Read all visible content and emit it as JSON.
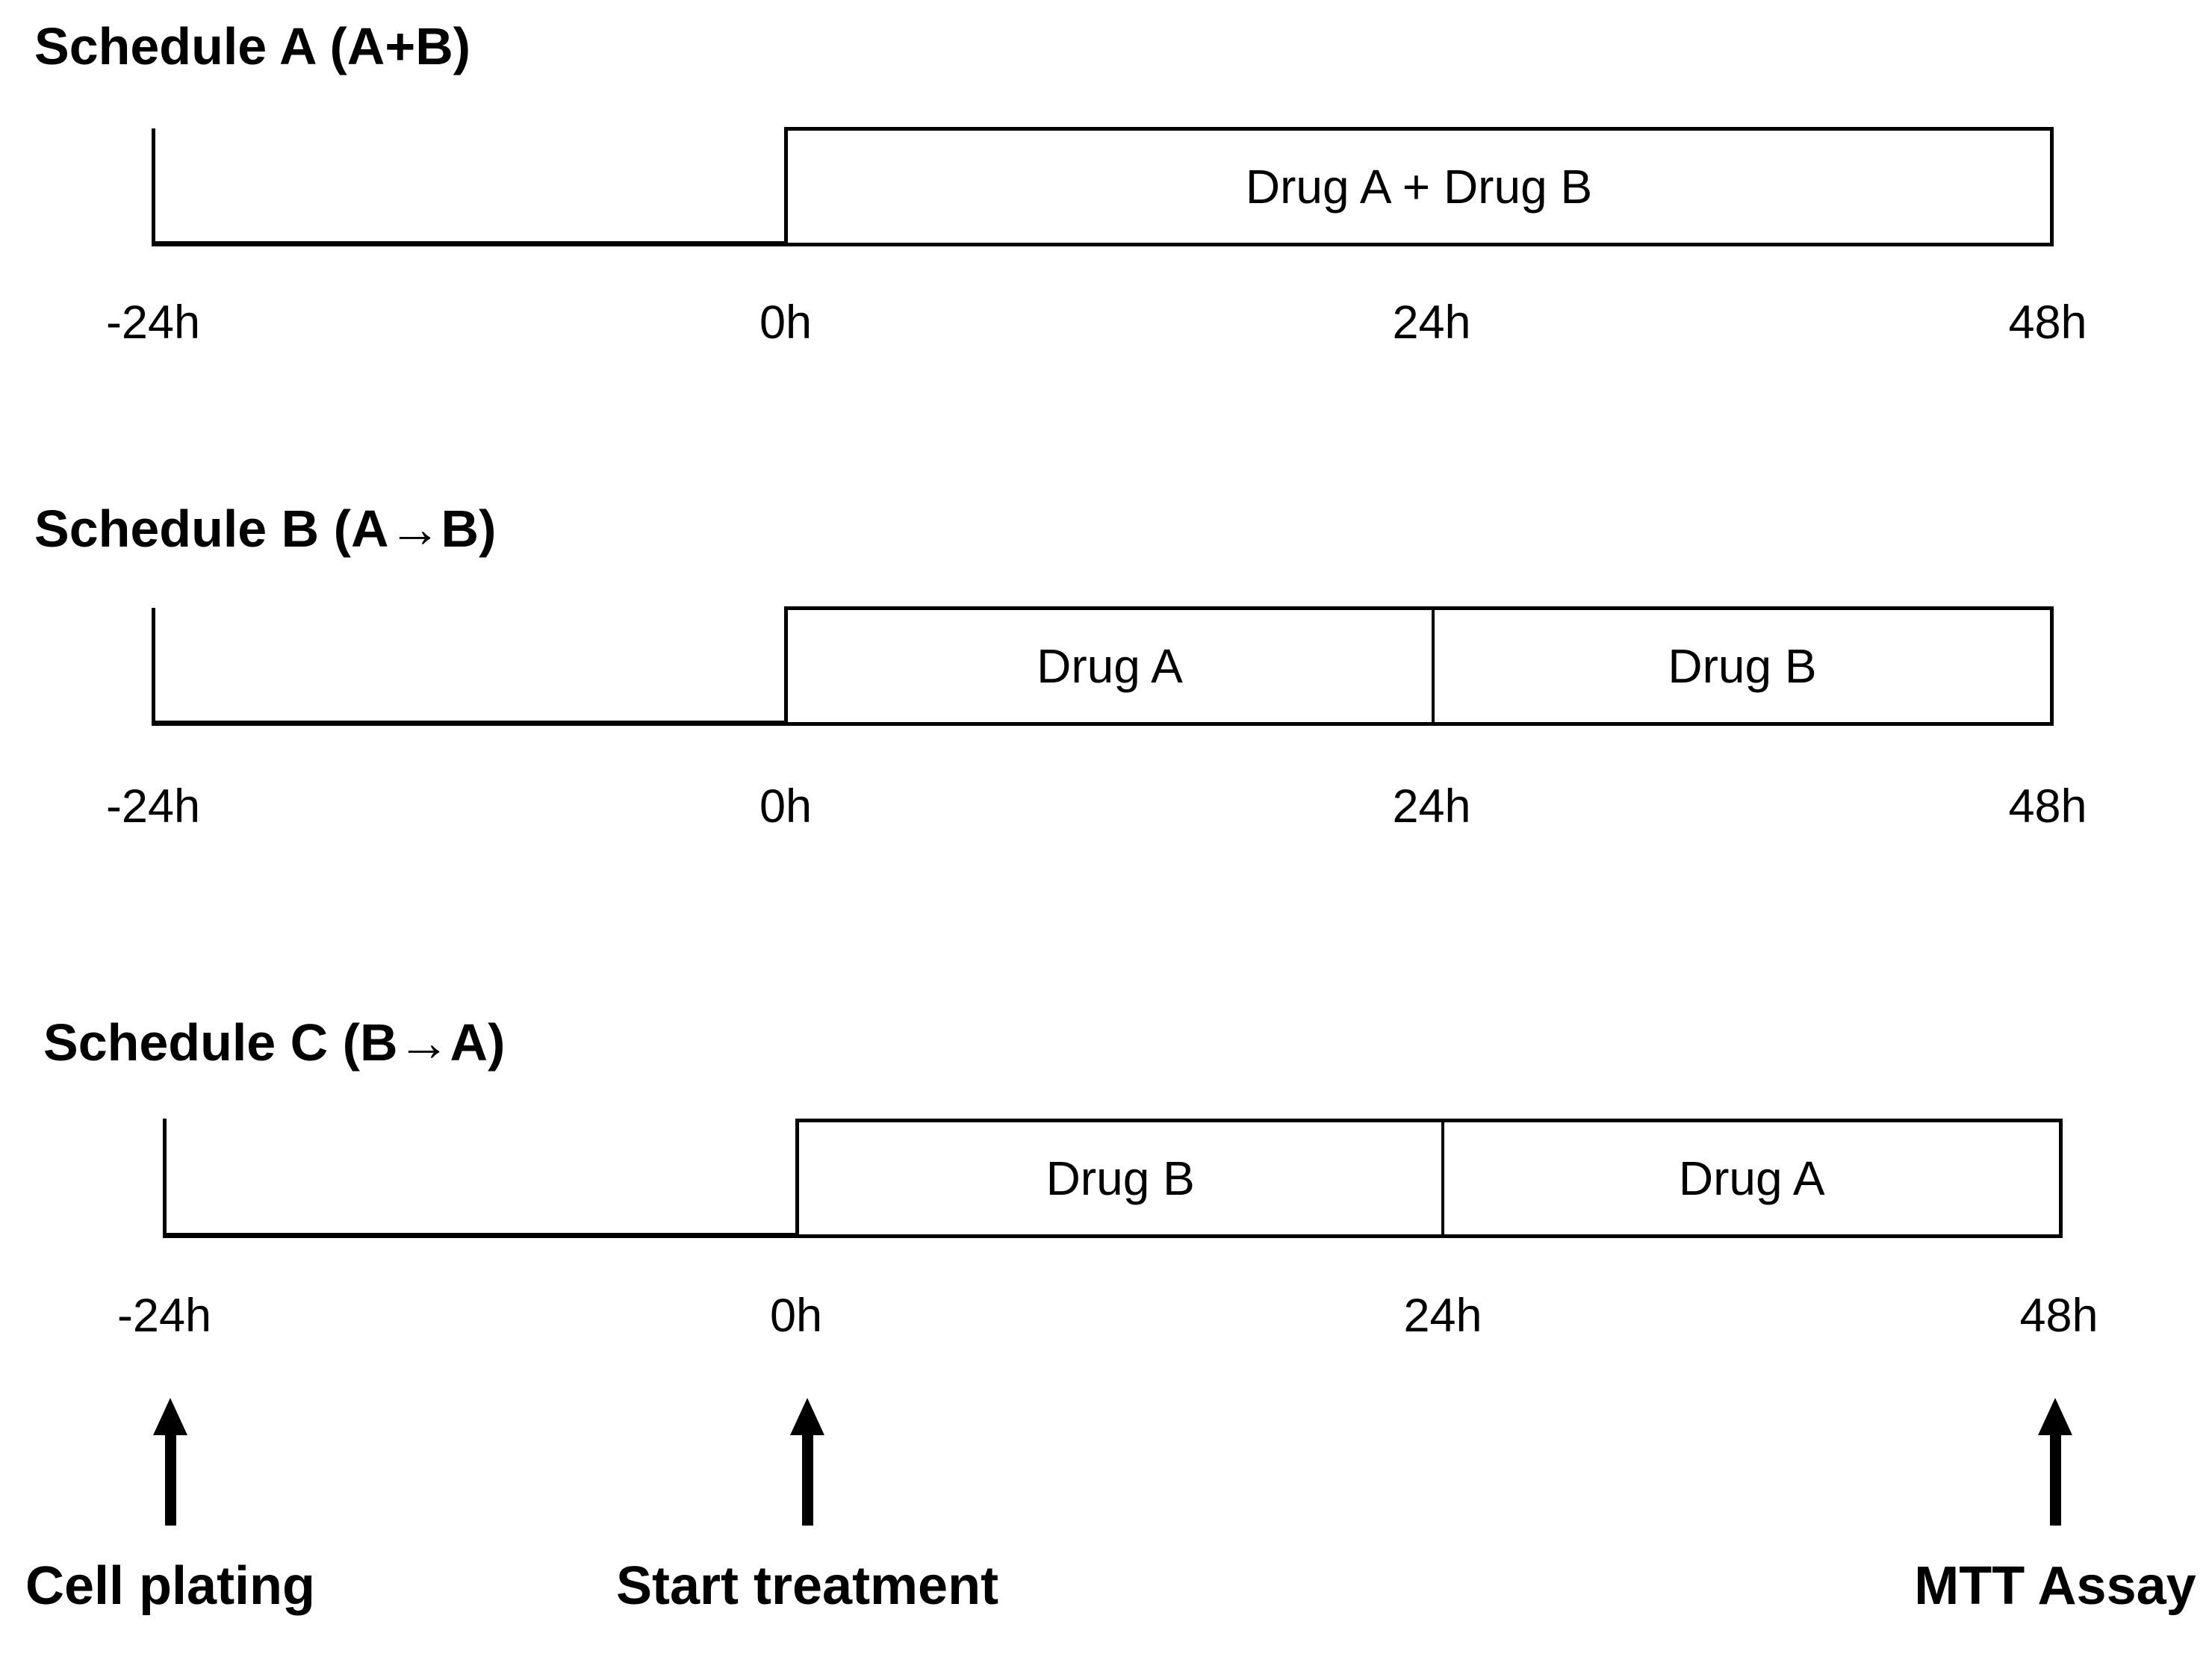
{
  "schedules": [
    {
      "title": "Schedule A (A+B)",
      "segments": [
        {
          "label": "Drug A + Drug B"
        }
      ],
      "axis_ticks": [
        "-24h",
        "0h",
        "24h",
        "48h"
      ]
    },
    {
      "title": "Schedule B (A→B)",
      "segments": [
        {
          "label": "Drug A"
        },
        {
          "label": "Drug B"
        }
      ],
      "axis_ticks": [
        "-24h",
        "0h",
        "24h",
        "48h"
      ]
    },
    {
      "title": "Schedule C (B→A)",
      "segments": [
        {
          "label": "Drug B"
        },
        {
          "label": "Drug A"
        }
      ],
      "axis_ticks": [
        "-24h",
        "0h",
        "24h",
        "48h"
      ]
    }
  ],
  "milestones": [
    {
      "label": "Cell plating"
    },
    {
      "label": "Start treatment"
    },
    {
      "label": "MTT Assay"
    }
  ],
  "colors": {
    "ink": "#000000",
    "background": "#ffffff"
  }
}
